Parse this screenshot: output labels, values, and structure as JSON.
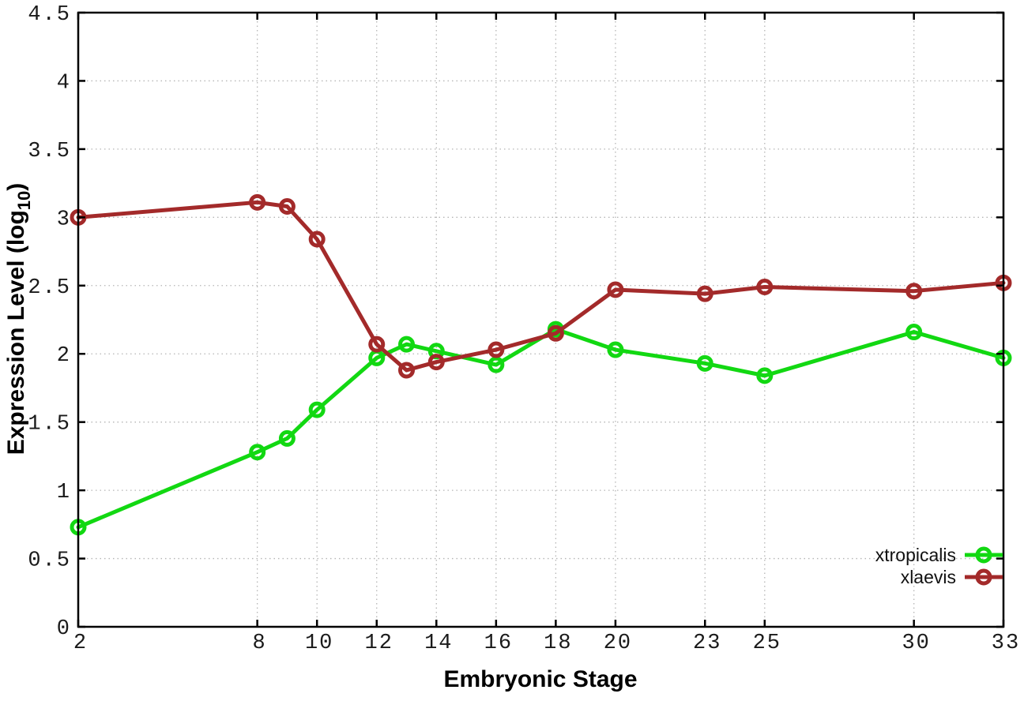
{
  "chart_data": {
    "type": "line",
    "title": "",
    "xlabel": "Embryonic Stage",
    "ylabel": "Expression Level (log10)",
    "ylabel_main": "Expression Level (log",
    "ylabel_subscript": "10",
    "ylabel_close": ")",
    "xlim": [
      2,
      33
    ],
    "ylim": [
      0,
      4.5
    ],
    "x_tick_values": [
      2,
      8,
      10,
      12,
      14,
      16,
      18,
      20,
      23,
      25,
      30,
      33
    ],
    "x_tick_labels": [
      "2",
      "8",
      "10",
      "12",
      "14",
      "16",
      "18",
      "20",
      "23",
      "25",
      "30",
      "33"
    ],
    "y_tick_values": [
      0,
      0.5,
      1,
      1.5,
      2,
      2.5,
      3,
      3.5,
      4,
      4.5
    ],
    "y_tick_labels": [
      "0",
      "0.5",
      "1",
      "1.5",
      "2",
      "2.5",
      "3",
      "3.5",
      "4",
      "4.5"
    ],
    "grid": "dotted",
    "legend_position": "bottom-right-inside",
    "marker": "open-circle",
    "x": [
      2,
      8,
      9,
      10,
      12,
      13,
      14,
      16,
      18,
      20,
      23,
      25,
      30,
      33
    ],
    "series": [
      {
        "name": "xtropicalis",
        "color": "#12d812",
        "values": [
          0.73,
          1.28,
          1.38,
          1.59,
          1.97,
          2.07,
          2.02,
          1.92,
          2.18,
          2.03,
          1.93,
          1.84,
          2.16,
          1.97
        ]
      },
      {
        "name": "xlaevis",
        "color": "#a32a2a",
        "values": [
          3.0,
          3.11,
          3.08,
          2.84,
          2.07,
          1.88,
          1.94,
          2.03,
          2.15,
          2.47,
          2.44,
          2.49,
          2.46,
          2.52
        ]
      }
    ],
    "axis_color": "#000000",
    "grid_color": "#b5b5b5",
    "background_color": "#ffffff"
  }
}
